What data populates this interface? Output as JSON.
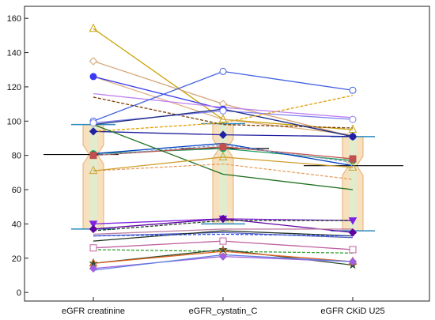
{
  "chart_data": {
    "type": "line",
    "title": "",
    "xlabel": "",
    "ylabel": "",
    "categories": [
      "eGFR creatinine",
      "eGFR_cystatin_C",
      "eGFR CKiD U25"
    ],
    "ylim": [
      -5,
      167
    ],
    "yticks": [
      0,
      20,
      40,
      60,
      80,
      100,
      120,
      140,
      160
    ],
    "grid": false,
    "legend": "none",
    "reference_line": {
      "value": 80.5,
      "color": "#000000"
    },
    "box_summary": [
      {
        "category": "eGFR creatinine",
        "median": 80.5,
        "q1": 37,
        "q3": 98,
        "color": "#f6d6a8"
      },
      {
        "category": "eGFR_cystatin_C",
        "median": 84,
        "q1": 40,
        "q3": 98.5,
        "color": "#f6d6a8"
      },
      {
        "category": "eGFR CKiD U25",
        "median": 74,
        "q1": 36,
        "q3": 91,
        "color": "#f6d6a8"
      }
    ],
    "series": [
      {
        "values": [
          154,
          101,
          95
        ],
        "color": "#c8a000",
        "marker": "triangle-open"
      },
      {
        "values": [
          135,
          110,
          91
        ],
        "color": "#d4a373",
        "marker": "diamond-open"
      },
      {
        "values": [
          126,
          101,
          92
        ],
        "color": "#e0b080",
        "marker": "none"
      },
      {
        "values": [
          126,
          107,
          91
        ],
        "color": "#3a3af0",
        "marker": "circle"
      },
      {
        "values": [
          116,
          108,
          102
        ],
        "color": "#c080f0",
        "marker": "none"
      },
      {
        "values": [
          114,
          98,
          96
        ],
        "color": "#7a3a00",
        "marker": "none",
        "dash": true
      },
      {
        "values": [
          100,
          129,
          118
        ],
        "color": "#4060e0",
        "marker": "circle-open"
      },
      {
        "values": [
          99,
          106,
          101
        ],
        "color": "#8080f0",
        "marker": "circle-open"
      },
      {
        "values": [
          98,
          107,
          91
        ],
        "color": "#203080",
        "marker": "none"
      },
      {
        "values": [
          94,
          92,
          91
        ],
        "color": "#2020a0",
        "marker": "diamond"
      },
      {
        "values": [
          94,
          99,
          115
        ],
        "color": "#e0a000",
        "marker": "none",
        "dash": true
      },
      {
        "values": [
          81,
          84,
          77
        ],
        "color": "#20a060",
        "marker": "circle"
      },
      {
        "values": [
          81,
          87,
          74
        ],
        "color": "#0040c0",
        "marker": "none"
      },
      {
        "values": [
          80,
          85,
          78
        ],
        "color": "#c05050",
        "marker": "square"
      },
      {
        "values": [
          80,
          86,
          76
        ],
        "color": "#90a0c0",
        "marker": "none",
        "dash": true
      },
      {
        "values": [
          98,
          69,
          60
        ],
        "color": "#207020",
        "marker": "none"
      },
      {
        "values": [
          71,
          75,
          66
        ],
        "color": "#e8a060",
        "marker": "none",
        "dash": true
      },
      {
        "values": [
          71,
          79,
          73
        ],
        "color": "#d0a030",
        "marker": "triangle-open"
      },
      {
        "values": [
          40,
          43,
          42
        ],
        "color": "#8020e0",
        "marker": "triangle-down"
      },
      {
        "values": [
          37,
          43,
          35
        ],
        "color": "#6000a0",
        "marker": "diamond"
      },
      {
        "values": [
          36,
          42,
          42
        ],
        "color": "#204020",
        "marker": "none",
        "dash": true
      },
      {
        "values": [
          34,
          37,
          37
        ],
        "color": "#c080a0",
        "marker": "none"
      },
      {
        "values": [
          33,
          35,
          32
        ],
        "color": "#5060c0",
        "marker": "none"
      },
      {
        "values": [
          30,
          36,
          33
        ],
        "color": "#203020",
        "marker": "none"
      },
      {
        "values": [
          33,
          34,
          33
        ],
        "color": "#3050e0",
        "marker": "none",
        "dash": true
      },
      {
        "values": [
          26,
          30,
          25
        ],
        "color": "#c060a0",
        "marker": "square-open"
      },
      {
        "values": [
          25,
          24,
          23
        ],
        "color": "#30a030",
        "marker": "none",
        "dash": true
      },
      {
        "values": [
          17,
          25,
          16
        ],
        "color": "#305030",
        "marker": "star"
      },
      {
        "values": [
          17,
          24,
          18
        ],
        "color": "#e06020",
        "marker": "triangle-open"
      },
      {
        "values": [
          14,
          21,
          18
        ],
        "color": "#a060e0",
        "marker": "diamond"
      },
      {
        "values": [
          13,
          22,
          18
        ],
        "color": "#6080e0",
        "marker": "none"
      }
    ]
  }
}
